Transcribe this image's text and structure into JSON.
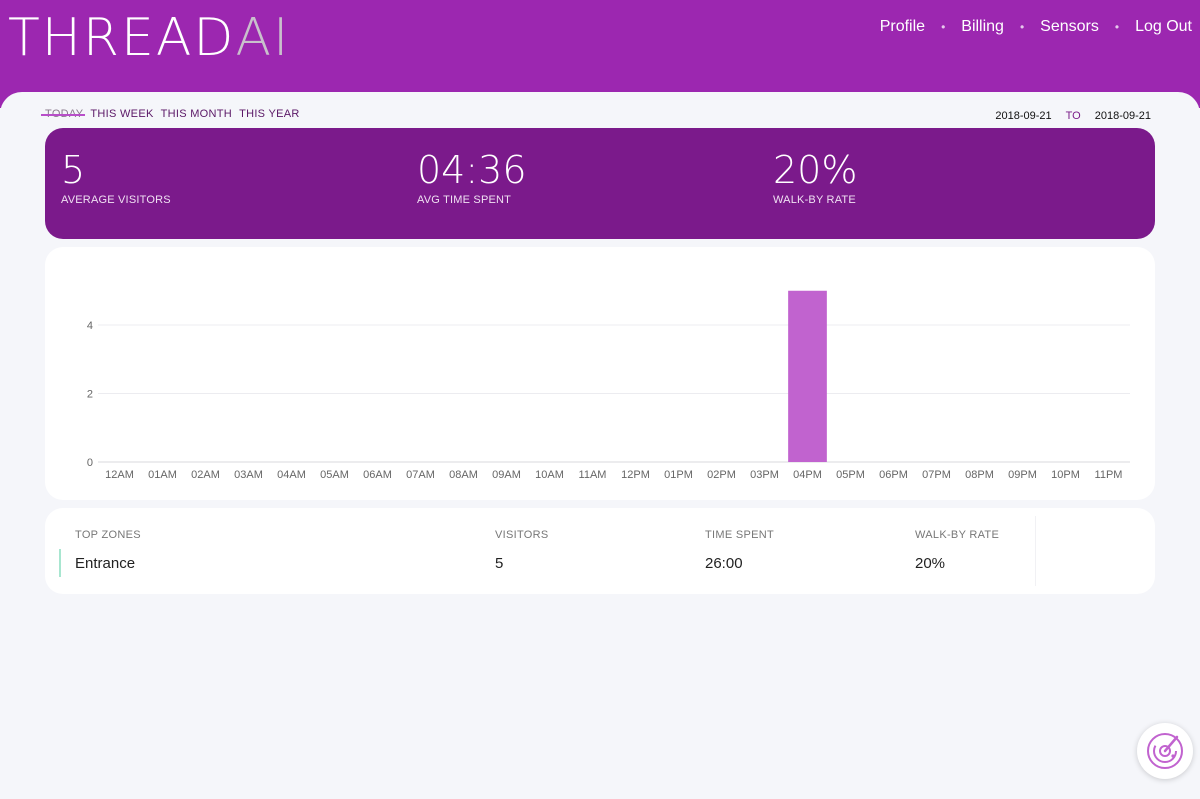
{
  "header": {
    "logo_main": "THREAD",
    "logo_ai": "AI",
    "nav": [
      "Profile",
      "Billing",
      "Sensors",
      "Log Out"
    ]
  },
  "range_tabs": {
    "items": [
      "TODAY",
      "THIS WEEK",
      "THIS MONTH",
      "THIS YEAR"
    ],
    "active": "TODAY"
  },
  "date_range": {
    "from": "2018-09-21",
    "to_label": "TO",
    "to": "2018-09-21"
  },
  "stats": [
    {
      "value": "5",
      "label": "AVERAGE VISITORS"
    },
    {
      "value": "04:36",
      "label": "AVG TIME SPENT"
    },
    {
      "value": "20%",
      "label": "WALK-BY RATE"
    }
  ],
  "chart_data": {
    "type": "bar",
    "categories": [
      "12AM",
      "01AM",
      "02AM",
      "03AM",
      "04AM",
      "05AM",
      "06AM",
      "07AM",
      "08AM",
      "09AM",
      "10AM",
      "11AM",
      "12PM",
      "01PM",
      "02PM",
      "03PM",
      "04PM",
      "05PM",
      "06PM",
      "07PM",
      "08PM",
      "09PM",
      "10PM",
      "11PM"
    ],
    "values": [
      0,
      0,
      0,
      0,
      0,
      0,
      0,
      0,
      0,
      0,
      0,
      0,
      0,
      0,
      0,
      0,
      5,
      0,
      0,
      0,
      0,
      0,
      0,
      0
    ],
    "yticks": [
      0,
      2,
      4
    ],
    "ylim": [
      0,
      5
    ],
    "bar_color": "#c163cf",
    "grid": true
  },
  "zones": {
    "headers": [
      "TOP ZONES",
      "VISITORS",
      "TIME SPENT",
      "WALK-BY RATE"
    ],
    "rows": [
      {
        "zone": "Entrance",
        "visitors": "5",
        "time_spent": "26:00",
        "walk_by": "20%"
      }
    ]
  },
  "fab": {
    "icon": "radar-icon"
  },
  "colors": {
    "header": "#9c27b0",
    "stats_bg": "#7b1a8b",
    "accent": "#c163cf"
  }
}
